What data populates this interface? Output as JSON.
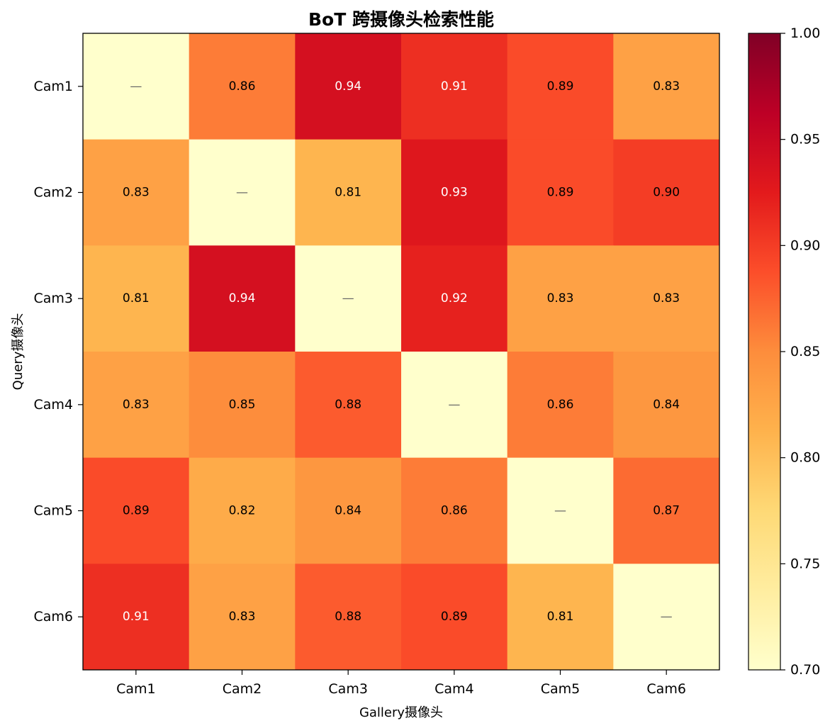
{
  "chart_data": {
    "type": "heatmap",
    "title": "BoT 跨摄像头检索性能",
    "xlabel": "Gallery摄像头",
    "ylabel": "Query摄像头",
    "x_categories": [
      "Cam1",
      "Cam2",
      "Cam3",
      "Cam4",
      "Cam5",
      "Cam6"
    ],
    "y_categories": [
      "Cam1",
      "Cam2",
      "Cam3",
      "Cam4",
      "Cam5",
      "Cam6"
    ],
    "values": [
      [
        null,
        0.86,
        0.94,
        0.91,
        0.89,
        0.83
      ],
      [
        0.83,
        null,
        0.81,
        0.93,
        0.89,
        0.9
      ],
      [
        0.81,
        0.94,
        null,
        0.92,
        0.83,
        0.83
      ],
      [
        0.83,
        0.85,
        0.88,
        null,
        0.86,
        0.84
      ],
      [
        0.89,
        0.82,
        0.84,
        0.86,
        null,
        0.87
      ],
      [
        0.91,
        0.83,
        0.88,
        0.89,
        0.81,
        null
      ]
    ],
    "cell_labels": [
      [
        "—",
        "0.86",
        "0.94",
        "0.91",
        "0.89",
        "0.83"
      ],
      [
        "0.83",
        "—",
        "0.81",
        "0.93",
        "0.89",
        "0.90"
      ],
      [
        "0.81",
        "0.94",
        "—",
        "0.92",
        "0.83",
        "0.83"
      ],
      [
        "0.83",
        "0.85",
        "0.88",
        "—",
        "0.86",
        "0.84"
      ],
      [
        "0.89",
        "0.82",
        "0.84",
        "0.86",
        "—",
        "0.87"
      ],
      [
        "0.91",
        "0.83",
        "0.88",
        "0.89",
        "0.81",
        "—"
      ]
    ],
    "diagonal_display_value": 0.7,
    "colorscale": "YlOrRd",
    "vmin": 0.7,
    "vmax": 1.0,
    "colorbar_ticks": [
      "0.70",
      "0.75",
      "0.80",
      "0.85",
      "0.90",
      "0.95",
      "1.00"
    ],
    "colorbar_tick_values": [
      0.7,
      0.75,
      0.8,
      0.85,
      0.9,
      0.95,
      1.0
    ]
  }
}
